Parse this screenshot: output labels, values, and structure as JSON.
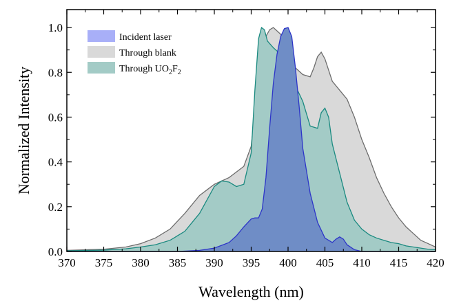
{
  "chart_data": {
    "type": "area",
    "xlabel": "Wavelength (nm)",
    "ylabel": "Normalized Intensity",
    "xlim": [
      370,
      420
    ],
    "ylim": [
      0,
      1.08
    ],
    "xticks": [
      370,
      375,
      380,
      385,
      390,
      395,
      400,
      405,
      410,
      415,
      420
    ],
    "yticks": [
      0.0,
      0.2,
      0.4,
      0.6,
      0.8,
      1.0
    ],
    "xtick_labels": [
      "370",
      "375",
      "380",
      "385",
      "390",
      "395",
      "400",
      "405",
      "410",
      "415",
      "420"
    ],
    "ytick_labels": [
      "0.0",
      "0.2",
      "0.4",
      "0.6",
      "0.8",
      "1.0"
    ],
    "grid": false,
    "legend_position": "top-left",
    "legend": [
      {
        "label": "Incident laser"
      },
      {
        "label": "Through blank"
      },
      {
        "label_main": "Through UO",
        "sub1": "2",
        "mid": "F",
        "sub2": "2"
      }
    ],
    "series": [
      {
        "name": "Through blank",
        "fill": "#d9d9d9",
        "stroke": "#6d6d6d",
        "x": [
          370,
          375,
          378,
          380,
          382,
          384,
          386,
          388,
          390,
          392,
          394,
          395,
          396,
          396.5,
          397,
          397.5,
          398,
          399,
          400,
          401,
          402,
          403,
          403.5,
          404,
          404.5,
          405,
          406,
          407,
          408,
          409,
          410,
          411,
          412,
          413,
          414,
          415,
          416,
          417,
          418,
          419,
          420
        ],
        "y": [
          0.005,
          0.01,
          0.02,
          0.035,
          0.06,
          0.1,
          0.17,
          0.25,
          0.3,
          0.33,
          0.38,
          0.47,
          0.78,
          0.9,
          0.96,
          0.99,
          1.0,
          0.97,
          0.88,
          0.82,
          0.79,
          0.78,
          0.82,
          0.87,
          0.89,
          0.86,
          0.76,
          0.72,
          0.68,
          0.6,
          0.5,
          0.42,
          0.33,
          0.26,
          0.2,
          0.15,
          0.11,
          0.08,
          0.05,
          0.035,
          0.02
        ]
      },
      {
        "name": "Through UO2F2",
        "fill": "#a3cbc6",
        "stroke": "#1b8a80",
        "x": [
          370,
          375,
          378,
          380,
          382,
          384,
          386,
          388,
          389,
          390,
          391,
          392,
          393,
          394,
          395,
          395.5,
          396,
          396.4,
          396.8,
          397.2,
          398,
          399,
          400,
          401,
          402,
          403,
          404,
          404.5,
          405,
          405.5,
          406,
          407,
          408,
          409,
          410,
          411,
          412,
          413,
          414,
          415,
          416,
          417,
          418,
          419,
          420
        ],
        "y": [
          0.003,
          0.006,
          0.012,
          0.02,
          0.03,
          0.05,
          0.09,
          0.17,
          0.23,
          0.29,
          0.315,
          0.31,
          0.29,
          0.3,
          0.44,
          0.72,
          0.95,
          1.0,
          0.99,
          0.94,
          0.91,
          0.88,
          0.84,
          0.74,
          0.67,
          0.56,
          0.55,
          0.62,
          0.64,
          0.6,
          0.48,
          0.35,
          0.22,
          0.14,
          0.1,
          0.075,
          0.06,
          0.05,
          0.04,
          0.035,
          0.025,
          0.02,
          0.015,
          0.01,
          0.008
        ]
      },
      {
        "name": "Incident laser",
        "fill": "#6f8dc6",
        "stroke": "#2d35c8",
        "x": [
          370,
          385,
          388,
          390,
          392,
          393,
          394,
          395,
          395.5,
          396,
          396.5,
          397,
          397.5,
          398,
          398.5,
          399,
          399.5,
          400,
          400.5,
          401,
          401.5,
          402,
          403,
          404,
          405,
          406,
          406.5,
          407,
          407.5,
          408,
          409,
          410,
          420
        ],
        "y": [
          0,
          0.0,
          0.005,
          0.015,
          0.04,
          0.07,
          0.11,
          0.145,
          0.15,
          0.15,
          0.19,
          0.33,
          0.55,
          0.75,
          0.88,
          0.96,
          0.995,
          1.0,
          0.96,
          0.82,
          0.65,
          0.46,
          0.26,
          0.13,
          0.06,
          0.04,
          0.055,
          0.065,
          0.055,
          0.03,
          0.008,
          0.0,
          0
        ]
      }
    ],
    "colors": {
      "axis": "#000000",
      "legend_laser": "#a8aff8",
      "legend_blank": "#d9d9d9",
      "legend_uo2f2": "#a3cbc6"
    }
  }
}
